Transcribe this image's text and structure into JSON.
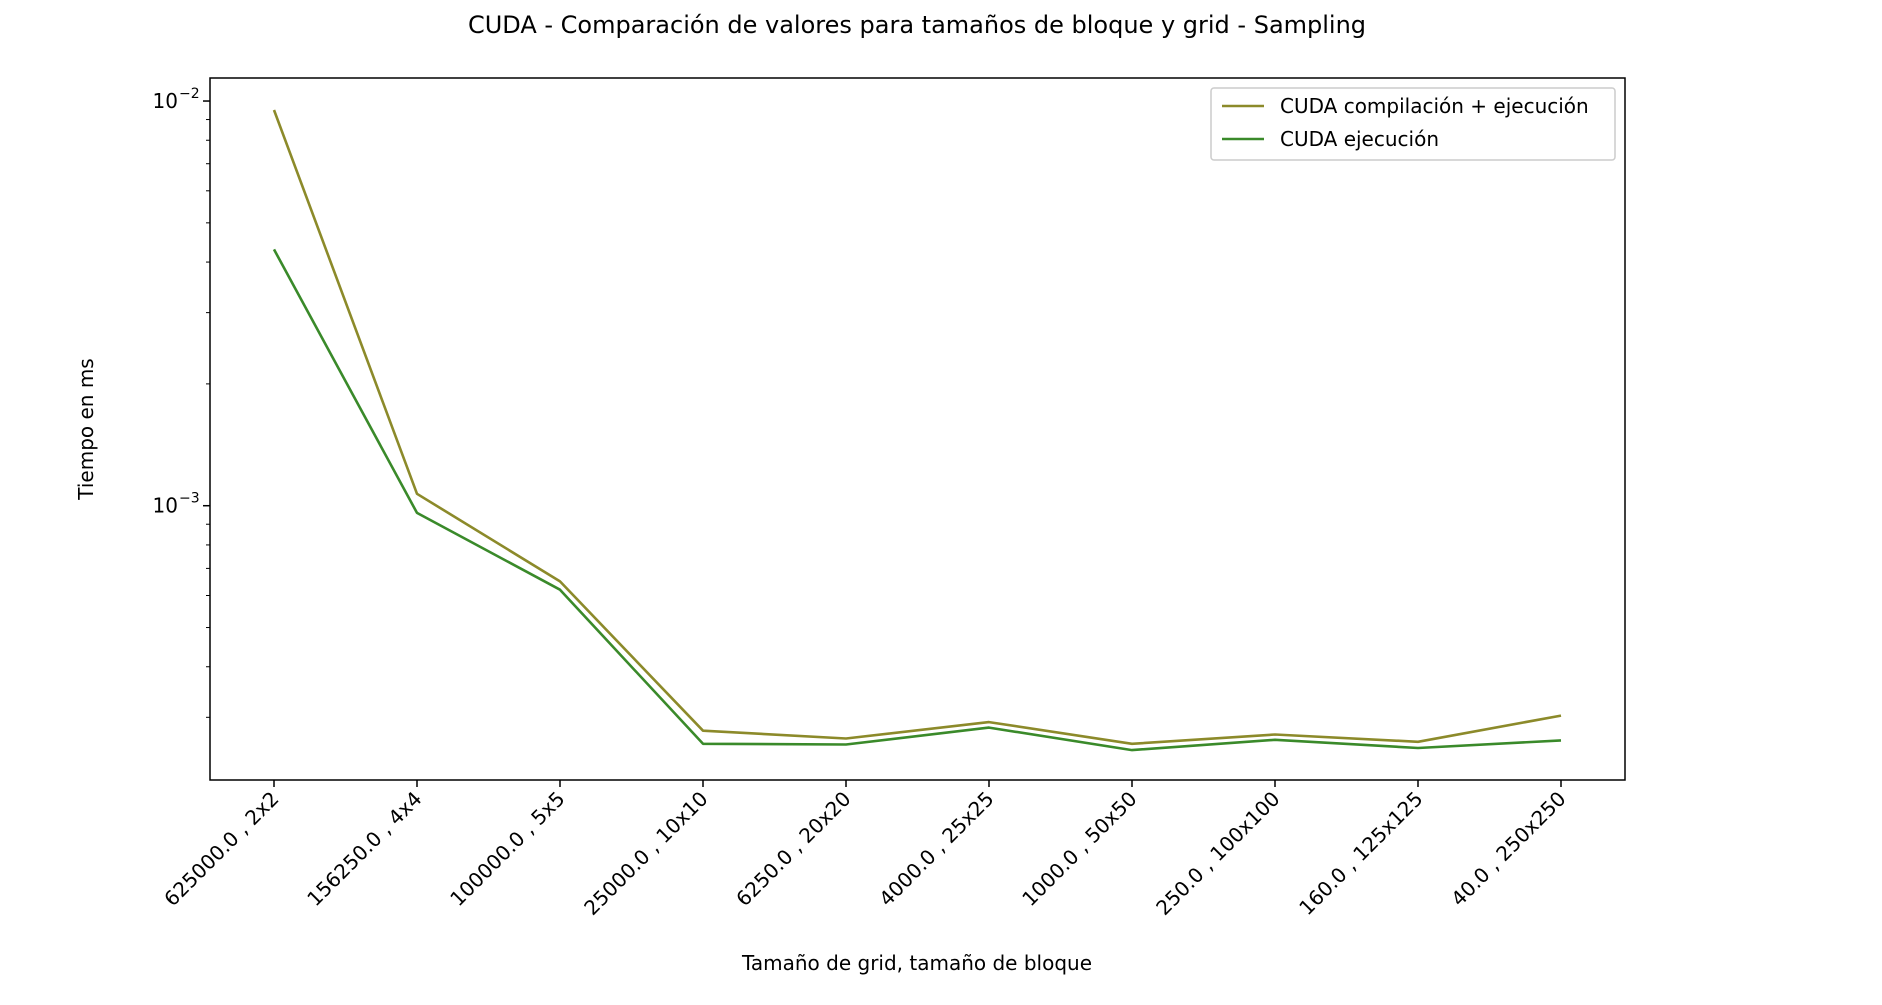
{
  "chart_data": {
    "type": "line",
    "title": "CUDA - Comparación de valores para tamaños de bloque y grid - Sampling",
    "xlabel": "Tamaño de grid, tamaño de bloque",
    "ylabel": "Tiempo en ms",
    "yscale": "log",
    "ylim": [
      0.00021,
      0.0114
    ],
    "categories": [
      "625000.0 , 2x2",
      "156250.0 , 4x4",
      "100000.0 , 5x5",
      "25000.0 , 10x10",
      "6250.0 , 20x20",
      "4000.0 , 25x25",
      "1000.0 , 50x50",
      "250.0 , 100x100",
      "160.0 , 125x125",
      "40.0 , 250x250"
    ],
    "yticks": [
      {
        "value": 0.01,
        "base": "10",
        "exp": "−2"
      },
      {
        "value": 0.001,
        "base": "10",
        "exp": "−3"
      }
    ],
    "series": [
      {
        "name": "CUDA compilación + ejecución",
        "color": "#8c8a2a",
        "values": [
          0.0095,
          0.00107,
          0.00065,
          0.000278,
          0.000266,
          0.000292,
          0.000258,
          0.000272,
          0.000261,
          0.000303
        ]
      },
      {
        "name": "CUDA ejecución",
        "color": "#3a8a2a",
        "values": [
          0.0043,
          0.00096,
          0.00062,
          0.000258,
          0.000257,
          0.000283,
          0.000249,
          0.000264,
          0.000252,
          0.000263
        ]
      }
    ],
    "grid": false,
    "legend_position": "top-right"
  }
}
